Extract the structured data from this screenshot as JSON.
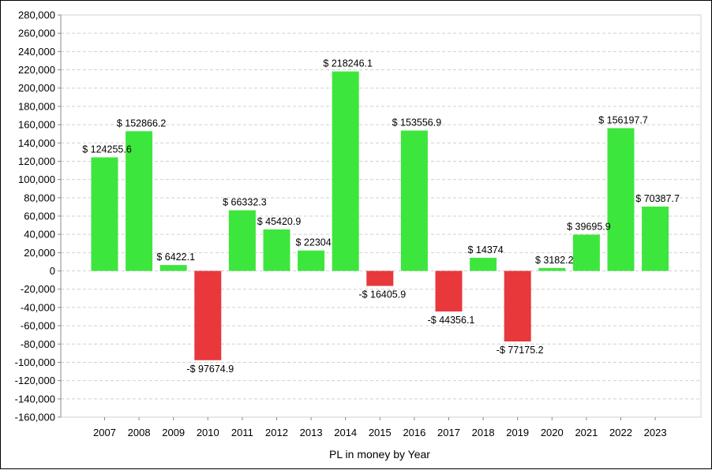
{
  "chart_data": {
    "type": "bar",
    "title": "",
    "xlabel": "PL in money by Year",
    "ylabel": "",
    "ylim": [
      -160000,
      280000
    ],
    "y_tick_step": 20000,
    "grid": true,
    "legend": "none",
    "categories": [
      "2007",
      "2008",
      "2009",
      "2010",
      "2011",
      "2012",
      "2013",
      "2014",
      "2015",
      "2016",
      "2017",
      "2018",
      "2019",
      "2020",
      "2021",
      "2022",
      "2023"
    ],
    "values": [
      124255.6,
      152866.2,
      6422.1,
      -97674.9,
      66332.3,
      45420.9,
      22304,
      218246.1,
      -16405.9,
      153556.9,
      -44356.1,
      14374,
      -77175.2,
      3182.2,
      39695.9,
      156197.7,
      70387.7
    ],
    "data_labels": [
      "$ 124255.6",
      "$ 152866.2",
      "$ 6422.1",
      "-$ 97674.9",
      "$ 66332.3",
      "$ 45420.9",
      "$ 22304",
      "$ 218246.1",
      "-$ 16405.9",
      "$ 153556.9",
      "-$ 44356.1",
      "$ 14374",
      "-$ 77175.2",
      "$ 3182.2",
      "$ 39695.9",
      "$ 156197.7",
      "$ 70387.7"
    ],
    "y_tick_labels": [
      "280,000",
      "260,000",
      "240,000",
      "220,000",
      "200,000",
      "180,000",
      "160,000",
      "140,000",
      "120,000",
      "100,000",
      "80,000",
      "60,000",
      "40,000",
      "20,000",
      "0",
      "-20,000",
      "-40,000",
      "-60,000",
      "-80,000",
      "-100,000",
      "-120,000",
      "-140,000",
      "-160,000"
    ],
    "colors": {
      "positive": "#3de63d",
      "negative": "#e8383c",
      "grid": "#d0d0d0",
      "axis": "#888888"
    }
  }
}
